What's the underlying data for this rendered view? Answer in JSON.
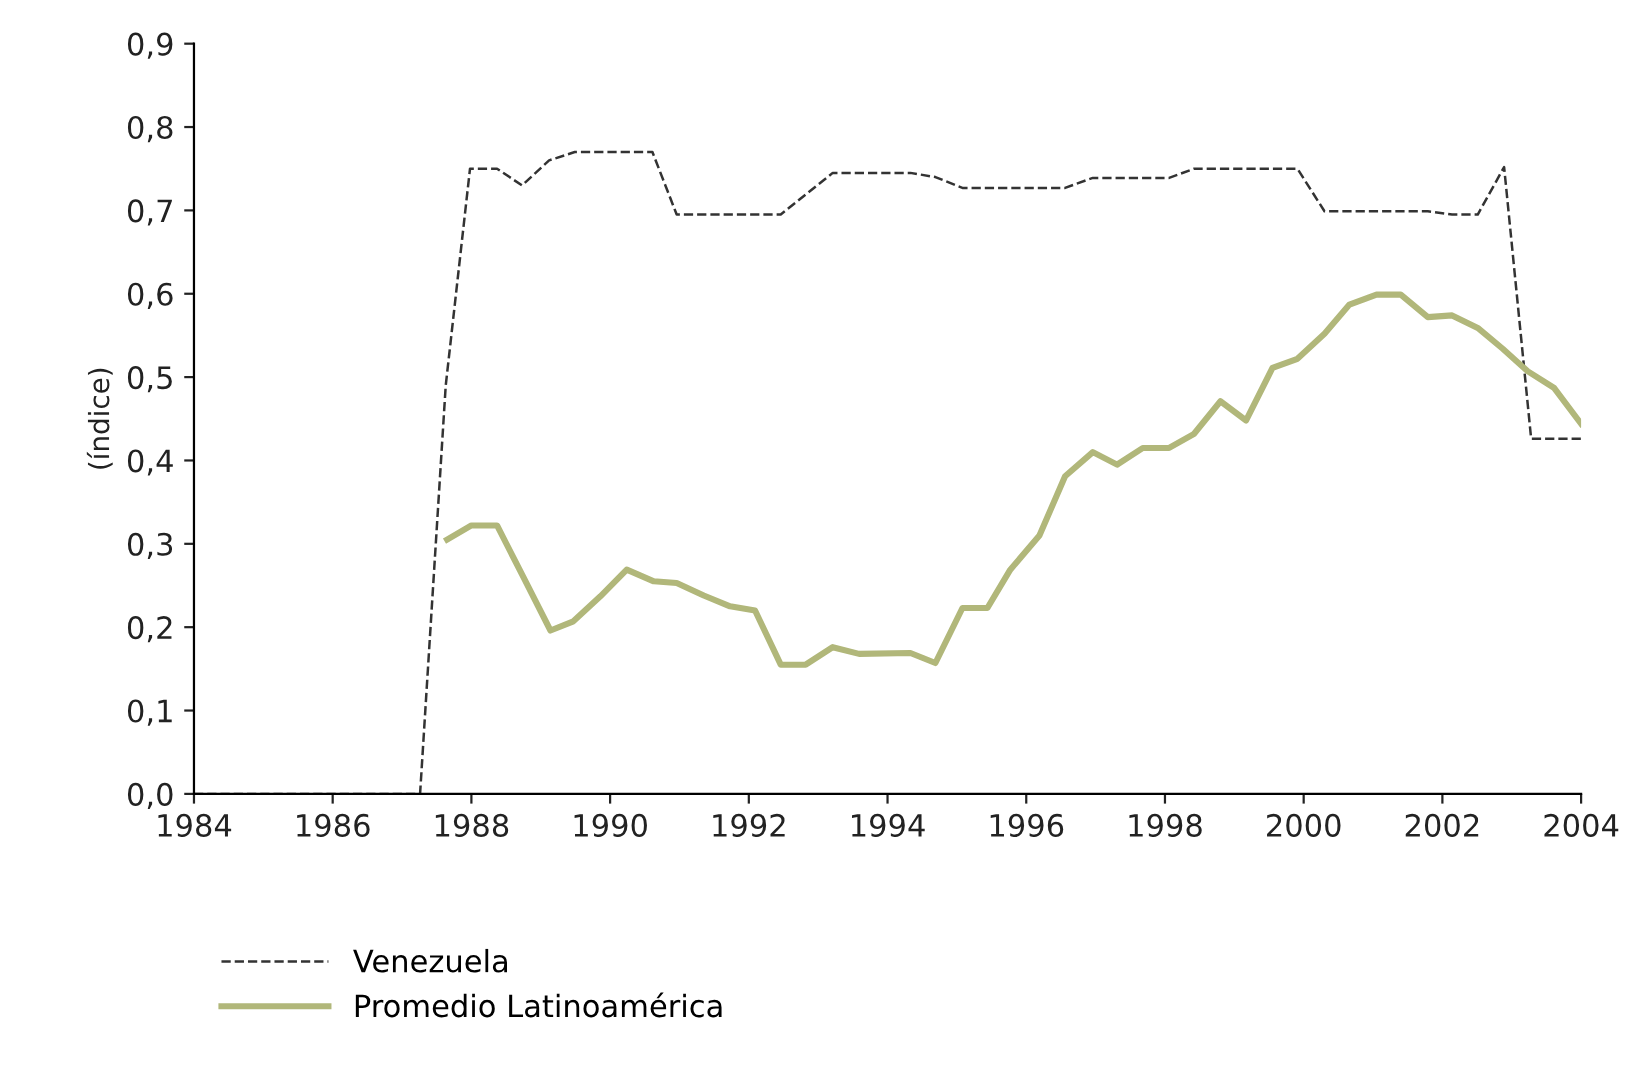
{
  "chart_data": {
    "type": "line",
    "ylabel": "(índice)",
    "xlim": [
      1984,
      2004
    ],
    "xticks": [
      1984,
      1986,
      1988,
      1990,
      1992,
      1994,
      1996,
      1998,
      2000,
      2002,
      2004
    ],
    "ylim": [
      0,
      0.9
    ],
    "yticks": [
      {
        "value": 0,
        "label": "0,0"
      },
      {
        "value": 0.1,
        "label": "0,1"
      },
      {
        "value": 0.2,
        "label": "0,2"
      },
      {
        "value": 0.3,
        "label": "0,3"
      },
      {
        "value": 0.4,
        "label": "0,4"
      },
      {
        "value": 0.5,
        "label": "0,5"
      },
      {
        "value": 0.6,
        "label": "0,6"
      },
      {
        "value": 0.7,
        "label": "0,7"
      },
      {
        "value": 0.8,
        "label": "0,8"
      },
      {
        "value": 0.9,
        "label": "0,9"
      }
    ],
    "grid": false,
    "legend": "bottom left",
    "marker": "none",
    "series": [
      {
        "name": "Venezuela",
        "color": "#333333",
        "line_style": "dashed",
        "x": [
          1984,
          1987.26,
          1987.63,
          1987.98,
          1988.37,
          1988.73,
          1989.12,
          1989.49,
          1990.61,
          1990.96,
          1992.46,
          1993.21,
          1994.33,
          1994.69,
          1995.08,
          1996.56,
          1996.96,
          1998.06,
          1998.42,
          1999.91,
          2000.3,
          2001.79,
          2002.14,
          2002.51,
          2002.89,
          2003.28,
          2004.0
        ],
        "values": [
          0,
          0,
          0.49,
          0.75,
          0.75,
          0.73,
          0.76,
          0.77,
          0.77,
          0.695,
          0.695,
          0.745,
          0.745,
          0.74,
          0.727,
          0.727,
          0.739,
          0.739,
          0.75,
          0.75,
          0.699,
          0.699,
          0.695,
          0.695,
          0.752,
          0.426,
          0.426
        ]
      },
      {
        "name": "Promedio Latinoamérica",
        "color": "#b1b77a",
        "line_style": "solid",
        "x": [
          1987.65,
          1988.0,
          1988.37,
          1988.75,
          1989.14,
          1989.47,
          1989.86,
          1990.24,
          1990.63,
          1990.96,
          1991.35,
          1991.73,
          1992.09,
          1992.46,
          1992.82,
          1993.21,
          1993.59,
          1994.33,
          1994.69,
          1995.08,
          1995.44,
          1995.77,
          1996.19,
          1996.56,
          1996.96,
          1997.31,
          1997.68,
          1998.06,
          1998.42,
          1998.8,
          1999.17,
          1999.55,
          1999.91,
          2000.3,
          2000.66,
          2001.05,
          2001.4,
          2001.79,
          2002.14,
          2002.51,
          2002.87,
          2003.23,
          2003.61,
          2004.0
        ],
        "values": [
          0.305,
          0.322,
          0.322,
          0.26,
          0.196,
          0.207,
          0.237,
          0.269,
          0.255,
          0.253,
          0.238,
          0.225,
          0.22,
          0.155,
          0.155,
          0.176,
          0.168,
          0.169,
          0.157,
          0.223,
          0.223,
          0.269,
          0.31,
          0.381,
          0.41,
          0.395,
          0.415,
          0.415,
          0.432,
          0.471,
          0.448,
          0.511,
          0.522,
          0.552,
          0.587,
          0.599,
          0.599,
          0.572,
          0.574,
          0.559,
          0.534,
          0.507,
          0.487,
          0.444
        ]
      }
    ]
  }
}
